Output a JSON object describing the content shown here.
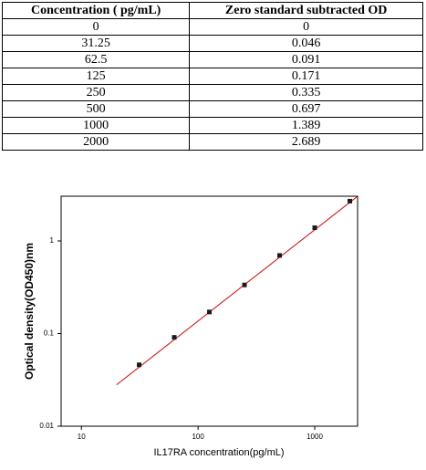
{
  "table": {
    "header": [
      "Concentration ( pg/mL)",
      "Zero standard subtracted OD"
    ],
    "rows": [
      [
        "0",
        "0"
      ],
      [
        "31.25",
        "0.046"
      ],
      [
        "62.5",
        "0.091"
      ],
      [
        "125",
        "0.171"
      ],
      [
        "250",
        "0.335"
      ],
      [
        "500",
        "0.697"
      ],
      [
        "1000",
        "1.389"
      ],
      [
        "2000",
        "2.689"
      ]
    ]
  },
  "chart_data": {
    "type": "scatter",
    "x_label": "IL17RA concentration(pg/mL)",
    "y_label": "Optical  density(OD450)nm",
    "log_x": true,
    "log_y": true,
    "xlim": [
      6.7,
      2330
    ],
    "xticks": [
      10,
      100,
      1000
    ],
    "ylim": [
      0.01,
      3.04
    ],
    "yticks": [
      0.01,
      0.1,
      1
    ],
    "series": [
      {
        "color": "#1a1a1a",
        "x": [
          31.25,
          62.5,
          125,
          250,
          500,
          1000,
          2000
        ],
        "values": [
          0.046,
          0.091,
          0.171,
          0.335,
          0.697,
          1.389,
          2.689
        ]
      },
      {
        "color": "#e00000",
        "x": [
          20,
          2300
        ],
        "values": [
          0.028,
          3.0
        ],
        "line": true
      }
    ]
  }
}
